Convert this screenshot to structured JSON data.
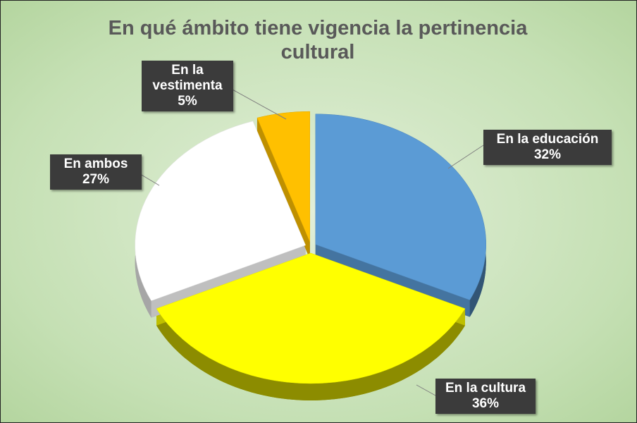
{
  "chart_data": {
    "type": "pie",
    "title": "En qué ámbito tiene vigencia la pertinencia cultural",
    "categories": [
      "En la educación",
      "En la cultura",
      "En ambos",
      "En la vestimenta"
    ],
    "values": [
      32,
      36,
      27,
      5
    ],
    "value_labels": [
      "32%",
      "36%",
      "27%",
      "5%"
    ],
    "colors": [
      "#5b9bd5",
      "#ffff00",
      "#ffffff",
      "#ffc000"
    ]
  }
}
